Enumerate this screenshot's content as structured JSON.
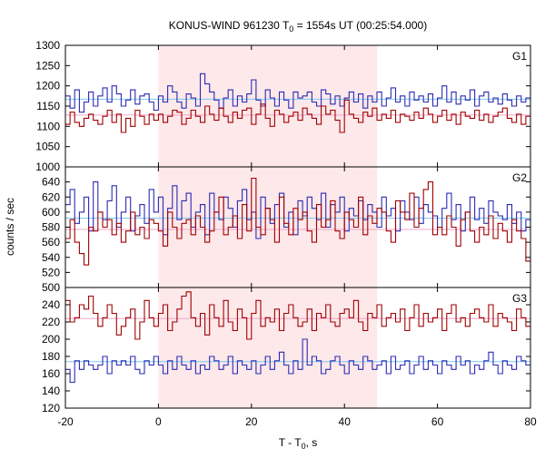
{
  "chart_data": {
    "type": "line",
    "title_main": "KONUS-WIND 961230 T",
    "title_sub": "0",
    "title_rest": " = 1554s UT (00:25:54.000)",
    "xlabel_main": "T - T",
    "xlabel_sub": "0",
    "xlabel_rest": ", s",
    "ylabel": "counts / sec",
    "xlim": [
      -20,
      80
    ],
    "x_ticks": [
      -20,
      0,
      20,
      40,
      60,
      80
    ],
    "bin_width": 1.0,
    "shaded_interval": [
      0,
      47
    ],
    "colors": {
      "shade": "#fde8ea",
      "blue": "#2b2bb3",
      "red": "#a00000",
      "blue_bg": "#7fc8f0",
      "red_bg": "#f0a6c8"
    },
    "panels": [
      {
        "label": "G1",
        "ylim": [
          1000,
          1300
        ],
        "y_ticks": [
          1000,
          1050,
          1100,
          1150,
          1200,
          1250,
          1300
        ],
        "background": {
          "blue": 1167,
          "red": 1128
        },
        "series": [
          {
            "color": "blue",
            "values": [
              1175,
              1145,
              1190,
              1135,
              1160,
              1185,
              1150,
              1175,
              1195,
              1160,
              1200,
              1180,
              1150,
              1165,
              1190,
              1155,
              1175,
              1180,
              1160,
              1140,
              1175,
              1160,
              1200,
              1185,
              1160,
              1145,
              1180,
              1170,
              1150,
              1230,
              1205,
              1185,
              1165,
              1145,
              1170,
              1190,
              1150,
              1175,
              1160,
              1180,
              1215,
              1165,
              1150,
              1190,
              1170,
              1150,
              1185,
              1165,
              1145,
              1185,
              1170,
              1175,
              1185,
              1160,
              1150,
              1190,
              1180,
              1155,
              1175,
              1150,
              1170,
              1185,
              1160,
              1180,
              1145,
              1175,
              1160,
              1185,
              1150,
              1170,
              1195,
              1160,
              1175,
              1150,
              1185,
              1165,
              1175,
              1160,
              1180,
              1150,
              1170,
              1200,
              1160,
              1185,
              1155,
              1175,
              1165,
              1190,
              1150,
              1175,
              1185,
              1160,
              1170,
              1155,
              1180,
              1165,
              1150,
              1175,
              1160,
              1170
            ]
          },
          {
            "color": "red",
            "values": [
              1105,
              1135,
              1110,
              1100,
              1120,
              1130,
              1115,
              1105,
              1125,
              1140,
              1110,
              1130,
              1085,
              1120,
              1100,
              1140,
              1125,
              1105,
              1130,
              1115,
              1130,
              1110,
              1125,
              1140,
              1135,
              1105,
              1120,
              1140,
              1125,
              1110,
              1150,
              1130,
              1115,
              1145,
              1125,
              1110,
              1135,
              1120,
              1140,
              1145,
              1105,
              1130,
              1155,
              1120,
              1100,
              1140,
              1130,
              1110,
              1125,
              1135,
              1115,
              1145,
              1130,
              1120,
              1105,
              1150,
              1130,
              1140,
              1115,
              1085,
              1165,
              1130,
              1120,
              1110,
              1135,
              1125,
              1145,
              1115,
              1130,
              1120,
              1140,
              1110,
              1130,
              1125,
              1115,
              1135,
              1120,
              1145,
              1130,
              1110,
              1125,
              1140,
              1115,
              1130,
              1105,
              1135,
              1125,
              1120,
              1140,
              1115,
              1130,
              1110,
              1125,
              1135,
              1145,
              1120,
              1110,
              1130,
              1105,
              1125
            ]
          }
        ]
      },
      {
        "label": "G2",
        "ylim": [
          500,
          660
        ],
        "y_ticks": [
          500,
          520,
          540,
          560,
          580,
          600,
          620,
          640
        ],
        "background": {
          "blue": 592,
          "red": 577
        },
        "series": [
          {
            "color": "blue",
            "values": [
              610,
              630,
              585,
              600,
              620,
              575,
              640,
              600,
              590,
              615,
              635,
              580,
              600,
              620,
              575,
              595,
              610,
              585,
              630,
              600,
              620,
              570,
              605,
              635,
              590,
              615,
              625,
              580,
              600,
              610,
              570,
              625,
              600,
              590,
              620,
              605,
              580,
              615,
              630,
              590,
              600,
              565,
              620,
              605,
              585,
              610,
              625,
              580,
              600,
              570,
              615,
              595,
              620,
              605,
              590,
              625,
              580,
              610,
              600,
              620,
              575,
              605,
              595,
              615,
              590,
              610,
              600,
              580,
              620,
              595,
              605,
              575,
              615,
              600,
              590,
              620,
              585,
              610,
              600,
              595,
              580,
              605,
              625,
              590,
              610,
              575,
              600,
              620,
              590,
              605,
              585,
              615,
              600,
              595,
              590,
              610,
              585,
              600,
              575,
              590
            ]
          },
          {
            "color": "red",
            "values": [
              565,
              590,
              560,
              545,
              530,
              580,
              575,
              600,
              580,
              590,
              570,
              585,
              560,
              575,
              600,
              570,
              580,
              565,
              590,
              585,
              575,
              555,
              600,
              580,
              565,
              585,
              590,
              570,
              595,
              580,
              560,
              575,
              600,
              620,
              570,
              580,
              595,
              565,
              610,
              575,
              645,
              580,
              570,
              605,
              590,
              560,
              620,
              585,
              570,
              605,
              590,
              600,
              575,
              560,
              610,
              580,
              590,
              615,
              575,
              565,
              600,
              590,
              580,
              620,
              570,
              595,
              585,
              605,
              600,
              575,
              560,
              615,
              600,
              590,
              625,
              580,
              605,
              630,
              640,
              570,
              580,
              570,
              595,
              580,
              555,
              590,
              600,
              575,
              560,
              580,
              570,
              595,
              565,
              585,
              575,
              560,
              590,
              575,
              565,
              535
            ]
          }
        ]
      },
      {
        "label": "G3",
        "ylim": [
          120,
          260
        ],
        "y_ticks": [
          120,
          140,
          160,
          180,
          200,
          220,
          240
        ],
        "background": {
          "blue": 174,
          "red": 224
        },
        "series": [
          {
            "color": "blue",
            "values": [
              165,
              150,
              175,
              165,
              175,
              170,
              165,
              170,
              180,
              160,
              175,
              170,
              175,
              170,
              180,
              165,
              160,
              175,
              170,
              180,
              170,
              160,
              175,
              165,
              180,
              170,
              165,
              175,
              160,
              170,
              165,
              180,
              175,
              165,
              170,
              180,
              160,
              175,
              170,
              165,
              175,
              160,
              170,
              180,
              165,
              175,
              185,
              170,
              160,
              175,
              165,
              200,
              170,
              180,
              175,
              160,
              165,
              175,
              180,
              170,
              160,
              175,
              170,
              165,
              180,
              175,
              165,
              170,
              175,
              160,
              180,
              165,
              170,
              175,
              160,
              170,
              180,
              165,
              175,
              170,
              160,
              175,
              170,
              165,
              180,
              170,
              175,
              160,
              170,
              165,
              175,
              185,
              170,
              160,
              175,
              170,
              165,
              180,
              175,
              170
            ]
          },
          {
            "color": "red",
            "values": [
              245,
              220,
              225,
              240,
              235,
              250,
              230,
              215,
              225,
              240,
              230,
              205,
              215,
              225,
              235,
              200,
              220,
              245,
              225,
              215,
              230,
              240,
              210,
              220,
              235,
              250,
              255,
              225,
              215,
              230,
              205,
              240,
              225,
              215,
              245,
              220,
              210,
              235,
              225,
              200,
              230,
              245,
              215,
              225,
              220,
              235,
              210,
              230,
              240,
              225,
              215,
              220,
              235,
              210,
              230,
              225,
              240,
              220,
              215,
              230,
              235,
              225,
              245,
              220,
              210,
              230,
              225,
              240,
              215,
              225,
              230,
              220,
              235,
              210,
              225,
              240,
              215,
              230,
              220,
              225,
              235,
              210,
              230,
              240,
              220,
              225,
              215,
              230,
              235,
              225,
              220,
              240,
              215,
              230,
              225,
              220,
              210,
              235,
              225,
              215
            ]
          }
        ]
      }
    ]
  }
}
